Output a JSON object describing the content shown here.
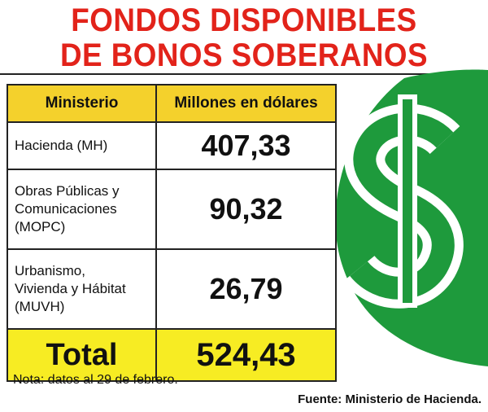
{
  "title": {
    "line1": "FONDOS DISPONIBLES",
    "line2": "DE BONOS  SOBERANOS"
  },
  "table": {
    "headers": [
      "Ministerio",
      "Millones en dólares"
    ],
    "rows": [
      {
        "name": [
          "Hacienda (MH)"
        ],
        "value": "407,33"
      },
      {
        "name": [
          "Obras Públicas y",
          "Comunicaciones",
          "(MOPC)"
        ],
        "value": "90,32"
      },
      {
        "name": [
          "Urbanismo,",
          "Vivienda y Hábitat",
          "(MUVH)"
        ],
        "value": "26,79"
      }
    ],
    "total": {
      "label": "Total",
      "value": "524,43"
    }
  },
  "note": "Nota: datos al 29 de febrero.",
  "source": "Fuente: Ministerio de Hacienda.",
  "colors": {
    "title": "#e2231a",
    "header_bg": "#f4d12c",
    "total_bg": "#f7ec23",
    "icon_green": "#1e9a3c"
  },
  "icon": "dollar-sign-icon"
}
